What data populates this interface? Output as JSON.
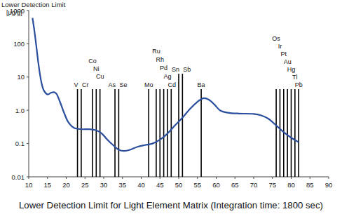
{
  "chart_data": {
    "type": "line",
    "title": "Lower Detection Limit for Light Element Matrix (Integration time: 1800 sec)",
    "subtitle": "Lower Detection Limit",
    "y_label": "[μg/g]",
    "log": "y",
    "grid": false,
    "color": "#2b4f9e",
    "xlim": [
      10,
      90
    ],
    "xticks": [
      10,
      15,
      20,
      25,
      30,
      35,
      40,
      45,
      50,
      55,
      60,
      65,
      70,
      75,
      80,
      85,
      90
    ],
    "ylim": [
      0.01,
      1000
    ],
    "yticks": [
      {
        "value": 0.01,
        "label": "0.01"
      },
      {
        "value": 0.1,
        "label": "0.1"
      },
      {
        "value": 1,
        "label": "1.0"
      },
      10,
      100,
      1000
    ],
    "x": [
      11,
      11.5,
      12,
      12.5,
      13,
      13.5,
      14,
      15,
      16,
      16.8,
      17.5,
      18.5,
      19.5,
      20.5,
      22,
      24,
      26,
      28,
      29.5,
      31,
      32.5,
      34,
      35.5,
      37,
      39,
      41,
      43,
      45,
      47,
      49,
      51,
      53,
      55,
      56.5,
      58,
      59.5,
      61,
      63,
      66,
      70,
      72,
      74,
      76,
      78,
      80,
      82
    ],
    "values": [
      600,
      250,
      90,
      30,
      12,
      6,
      4,
      3,
      3.4,
      3.5,
      3,
      1.6,
      0.8,
      0.45,
      0.3,
      0.27,
      0.27,
      0.25,
      0.2,
      0.13,
      0.09,
      0.065,
      0.06,
      0.065,
      0.08,
      0.09,
      0.1,
      0.13,
      0.2,
      0.35,
      0.6,
      1.1,
      1.8,
      2.3,
      2.1,
      1.5,
      1.0,
      0.85,
      0.8,
      0.78,
      0.7,
      0.55,
      0.35,
      0.22,
      0.15,
      0.11
    ],
    "annotations": [
      {
        "x": 23,
        "label": "V"
      },
      {
        "x": 24,
        "label": "Cr"
      },
      {
        "x": 27,
        "label": "Co"
      },
      {
        "x": 28,
        "label": "Ni"
      },
      {
        "x": 29,
        "label": "Cu"
      },
      {
        "x": 33,
        "label": "As"
      },
      {
        "x": 34,
        "label": "Se"
      },
      {
        "x": 42,
        "label": "Mo"
      },
      {
        "x": 44,
        "label": "Ru"
      },
      {
        "x": 45,
        "label": "Rh"
      },
      {
        "x": 46,
        "label": "Pd"
      },
      {
        "x": 47,
        "label": "Ag"
      },
      {
        "x": 48,
        "label": "Cd"
      },
      {
        "x": 50,
        "label": "Sn"
      },
      {
        "x": 51,
        "label": "Sb"
      },
      {
        "x": 56,
        "label": "Ba"
      },
      {
        "x": 76,
        "label": "Os"
      },
      {
        "x": 77,
        "label": "Ir"
      },
      {
        "x": 78,
        "label": "Pt"
      },
      {
        "x": 79,
        "label": "Au"
      },
      {
        "x": 80,
        "label": "Hg"
      },
      {
        "x": 81,
        "label": "Tl"
      },
      {
        "x": 82,
        "label": "Pb"
      }
    ]
  }
}
